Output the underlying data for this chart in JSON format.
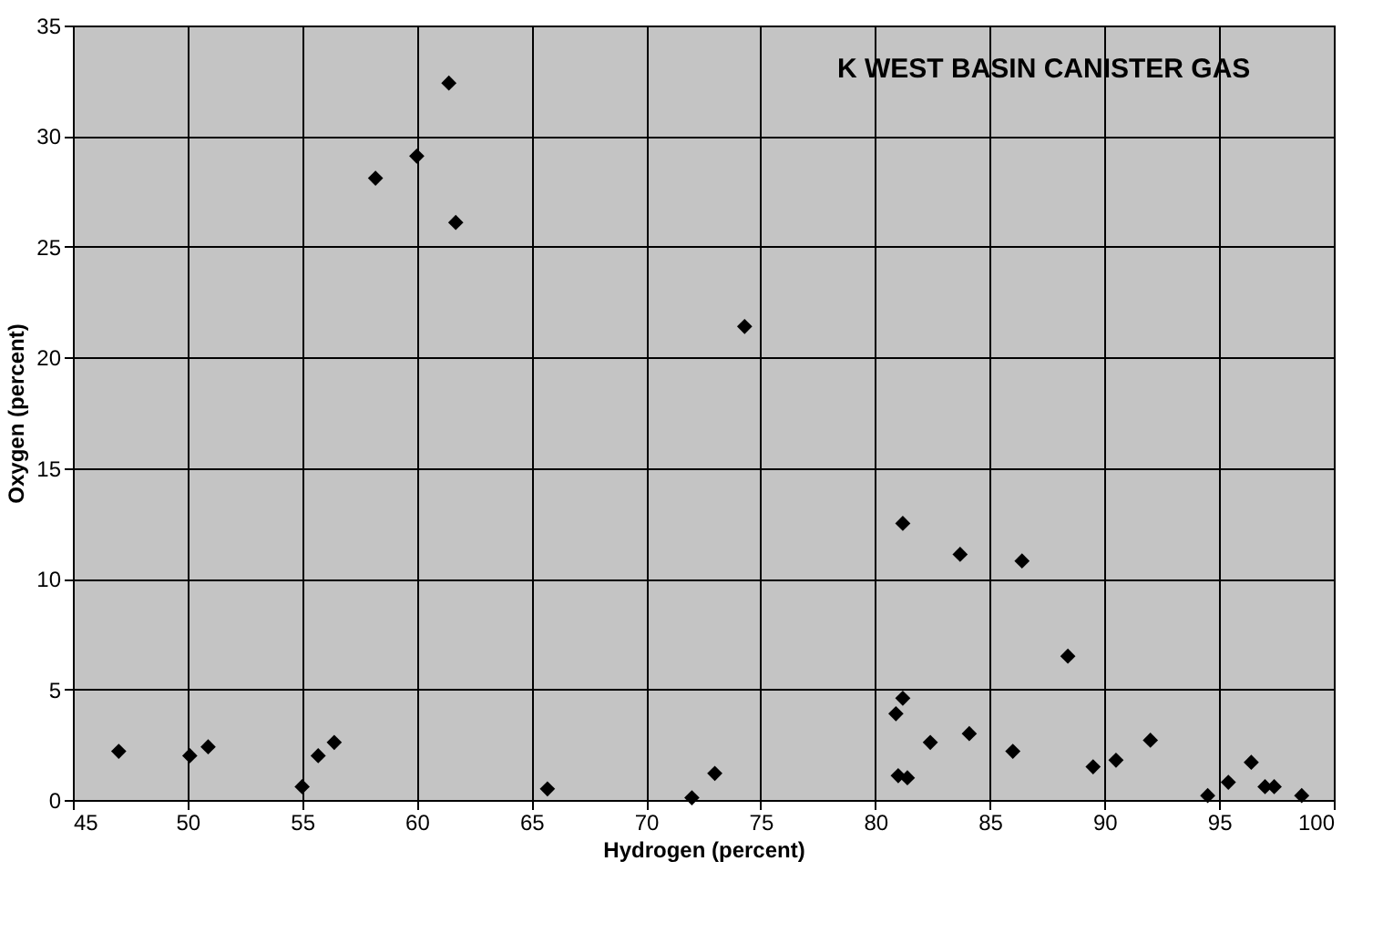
{
  "chart_data": {
    "type": "scatter",
    "xlabel": "Hydrogen (percent)",
    "ylabel": "Oxygen (percent)",
    "annotations": [
      "K WEST BASIN CANISTER GAS"
    ],
    "x": [
      47.0,
      50.1,
      50.9,
      55.0,
      55.7,
      56.4,
      58.2,
      60.0,
      61.4,
      61.7,
      65.7,
      72.0,
      73.0,
      74.3,
      80.9,
      81.0,
      81.2,
      81.2,
      81.4,
      82.4,
      83.7,
      84.1,
      86.0,
      86.4,
      88.4,
      89.5,
      90.5,
      92.0,
      94.5,
      95.4,
      96.4,
      97.0,
      97.4,
      98.6
    ],
    "series": [
      {
        "color": "#000000",
        "values": [
          2.2,
          2.0,
          2.4,
          0.6,
          2.0,
          2.6,
          28.1,
          29.1,
          32.4,
          26.1,
          0.5,
          0.1,
          1.2,
          21.4,
          3.9,
          1.1,
          12.5,
          4.6,
          1.0,
          2.6,
          11.1,
          3.0,
          2.2,
          10.8,
          6.5,
          1.5,
          1.8,
          2.7,
          0.2,
          0.8,
          1.7,
          0.6,
          0.6,
          0.2
        ]
      }
    ],
    "xlim": [
      45,
      100
    ],
    "xticks": [
      45,
      50,
      55,
      60,
      65,
      70,
      75,
      80,
      85,
      90,
      95,
      100
    ],
    "ylim": [
      0,
      35
    ],
    "yticks": [
      0,
      5,
      10,
      15,
      20,
      25,
      30,
      35
    ],
    "grid": true,
    "marker": "diamond"
  }
}
